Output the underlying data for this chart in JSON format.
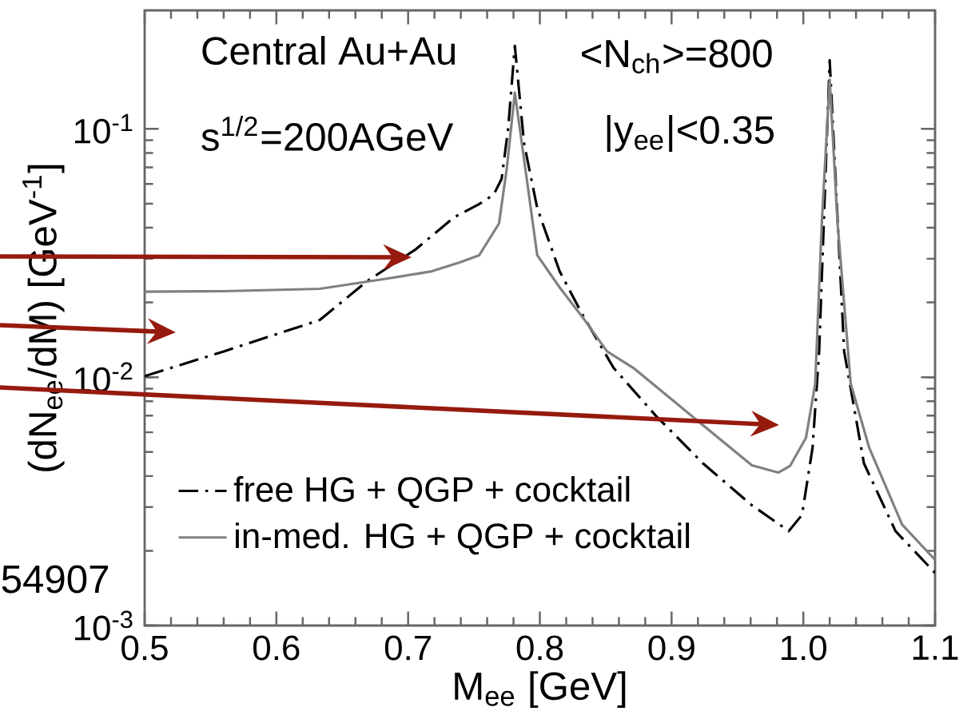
{
  "chart_data": {
    "type": "line",
    "xlabel": "M$_{ee}$ [GeV]",
    "ylabel": "(dN$_{ee}$/dM) [GeV$^{-1}$]",
    "log": "y",
    "xlim": [
      0.5,
      1.1
    ],
    "ylim": [
      0.001,
      0.3
    ],
    "xticks": [
      0.5,
      0.6,
      0.7,
      0.8,
      0.9,
      {
        "value": 1.0,
        "label": "1.0"
      },
      1.1
    ],
    "yticks": [
      {
        "value": 0.001,
        "label": "10$^{-3}$"
      },
      {
        "value": 0.01,
        "label": "10$^{-2}$"
      },
      {
        "value": 0.1,
        "label": "10$^{-1}$"
      }
    ],
    "grid": false,
    "legend": "bottom left",
    "annotations": [
      "Central Au+Au",
      "s$^{1/2}$=200AGeV",
      "<N$_{ch}$>=800",
      "|y$_{ee}$|<0.35",
      "54907"
    ],
    "series": [
      {
        "name": "free HG + QGP + cocktail",
        "color": "#000000",
        "line_style": "dashdot",
        "x": [
          0.5,
          0.56,
          0.633,
          0.669,
          0.706,
          0.735,
          0.754,
          0.765,
          0.771,
          0.776,
          0.781,
          0.788,
          0.798,
          0.815,
          0.832,
          0.856,
          0.888,
          0.924,
          0.961,
          0.989,
          0.999,
          1.007,
          1.012,
          1.02,
          1.031,
          1.046,
          1.07,
          1.1
        ],
        "values": [
          0.0101,
          0.0127,
          0.017,
          0.0244,
          0.0328,
          0.0441,
          0.0498,
          0.0544,
          0.063,
          0.101,
          0.216,
          0.0875,
          0.048,
          0.0267,
          0.018,
          0.0109,
          0.007,
          0.00449,
          0.00305,
          0.0024,
          0.00279,
          0.0052,
          0.0127,
          0.189,
          0.0127,
          0.0045,
          0.0024,
          0.00163
        ]
      },
      {
        "name": "in-med. HG + QGP + cocktail",
        "color": "#808080",
        "line_style": "solid",
        "x": [
          0.5,
          0.56,
          0.633,
          0.681,
          0.718,
          0.74,
          0.754,
          0.769,
          0.775,
          0.781,
          0.788,
          0.798,
          0.815,
          0.834,
          0.851,
          0.871,
          0.924,
          0.961,
          0.981,
          0.99,
          1.002,
          1.009,
          1.014,
          1.02,
          1.026,
          1.036,
          1.05,
          1.075,
          1.1
        ],
        "values": [
          0.0221,
          0.0222,
          0.0227,
          0.0248,
          0.0267,
          0.0291,
          0.031,
          0.0416,
          0.07,
          0.14,
          0.0754,
          0.031,
          0.023,
          0.017,
          0.0127,
          0.0109,
          0.0064,
          0.00442,
          0.00413,
          0.0044,
          0.0057,
          0.0094,
          0.0416,
          0.158,
          0.0416,
          0.0094,
          0.0052,
          0.00255,
          0.00184
        ]
      }
    ]
  }
}
